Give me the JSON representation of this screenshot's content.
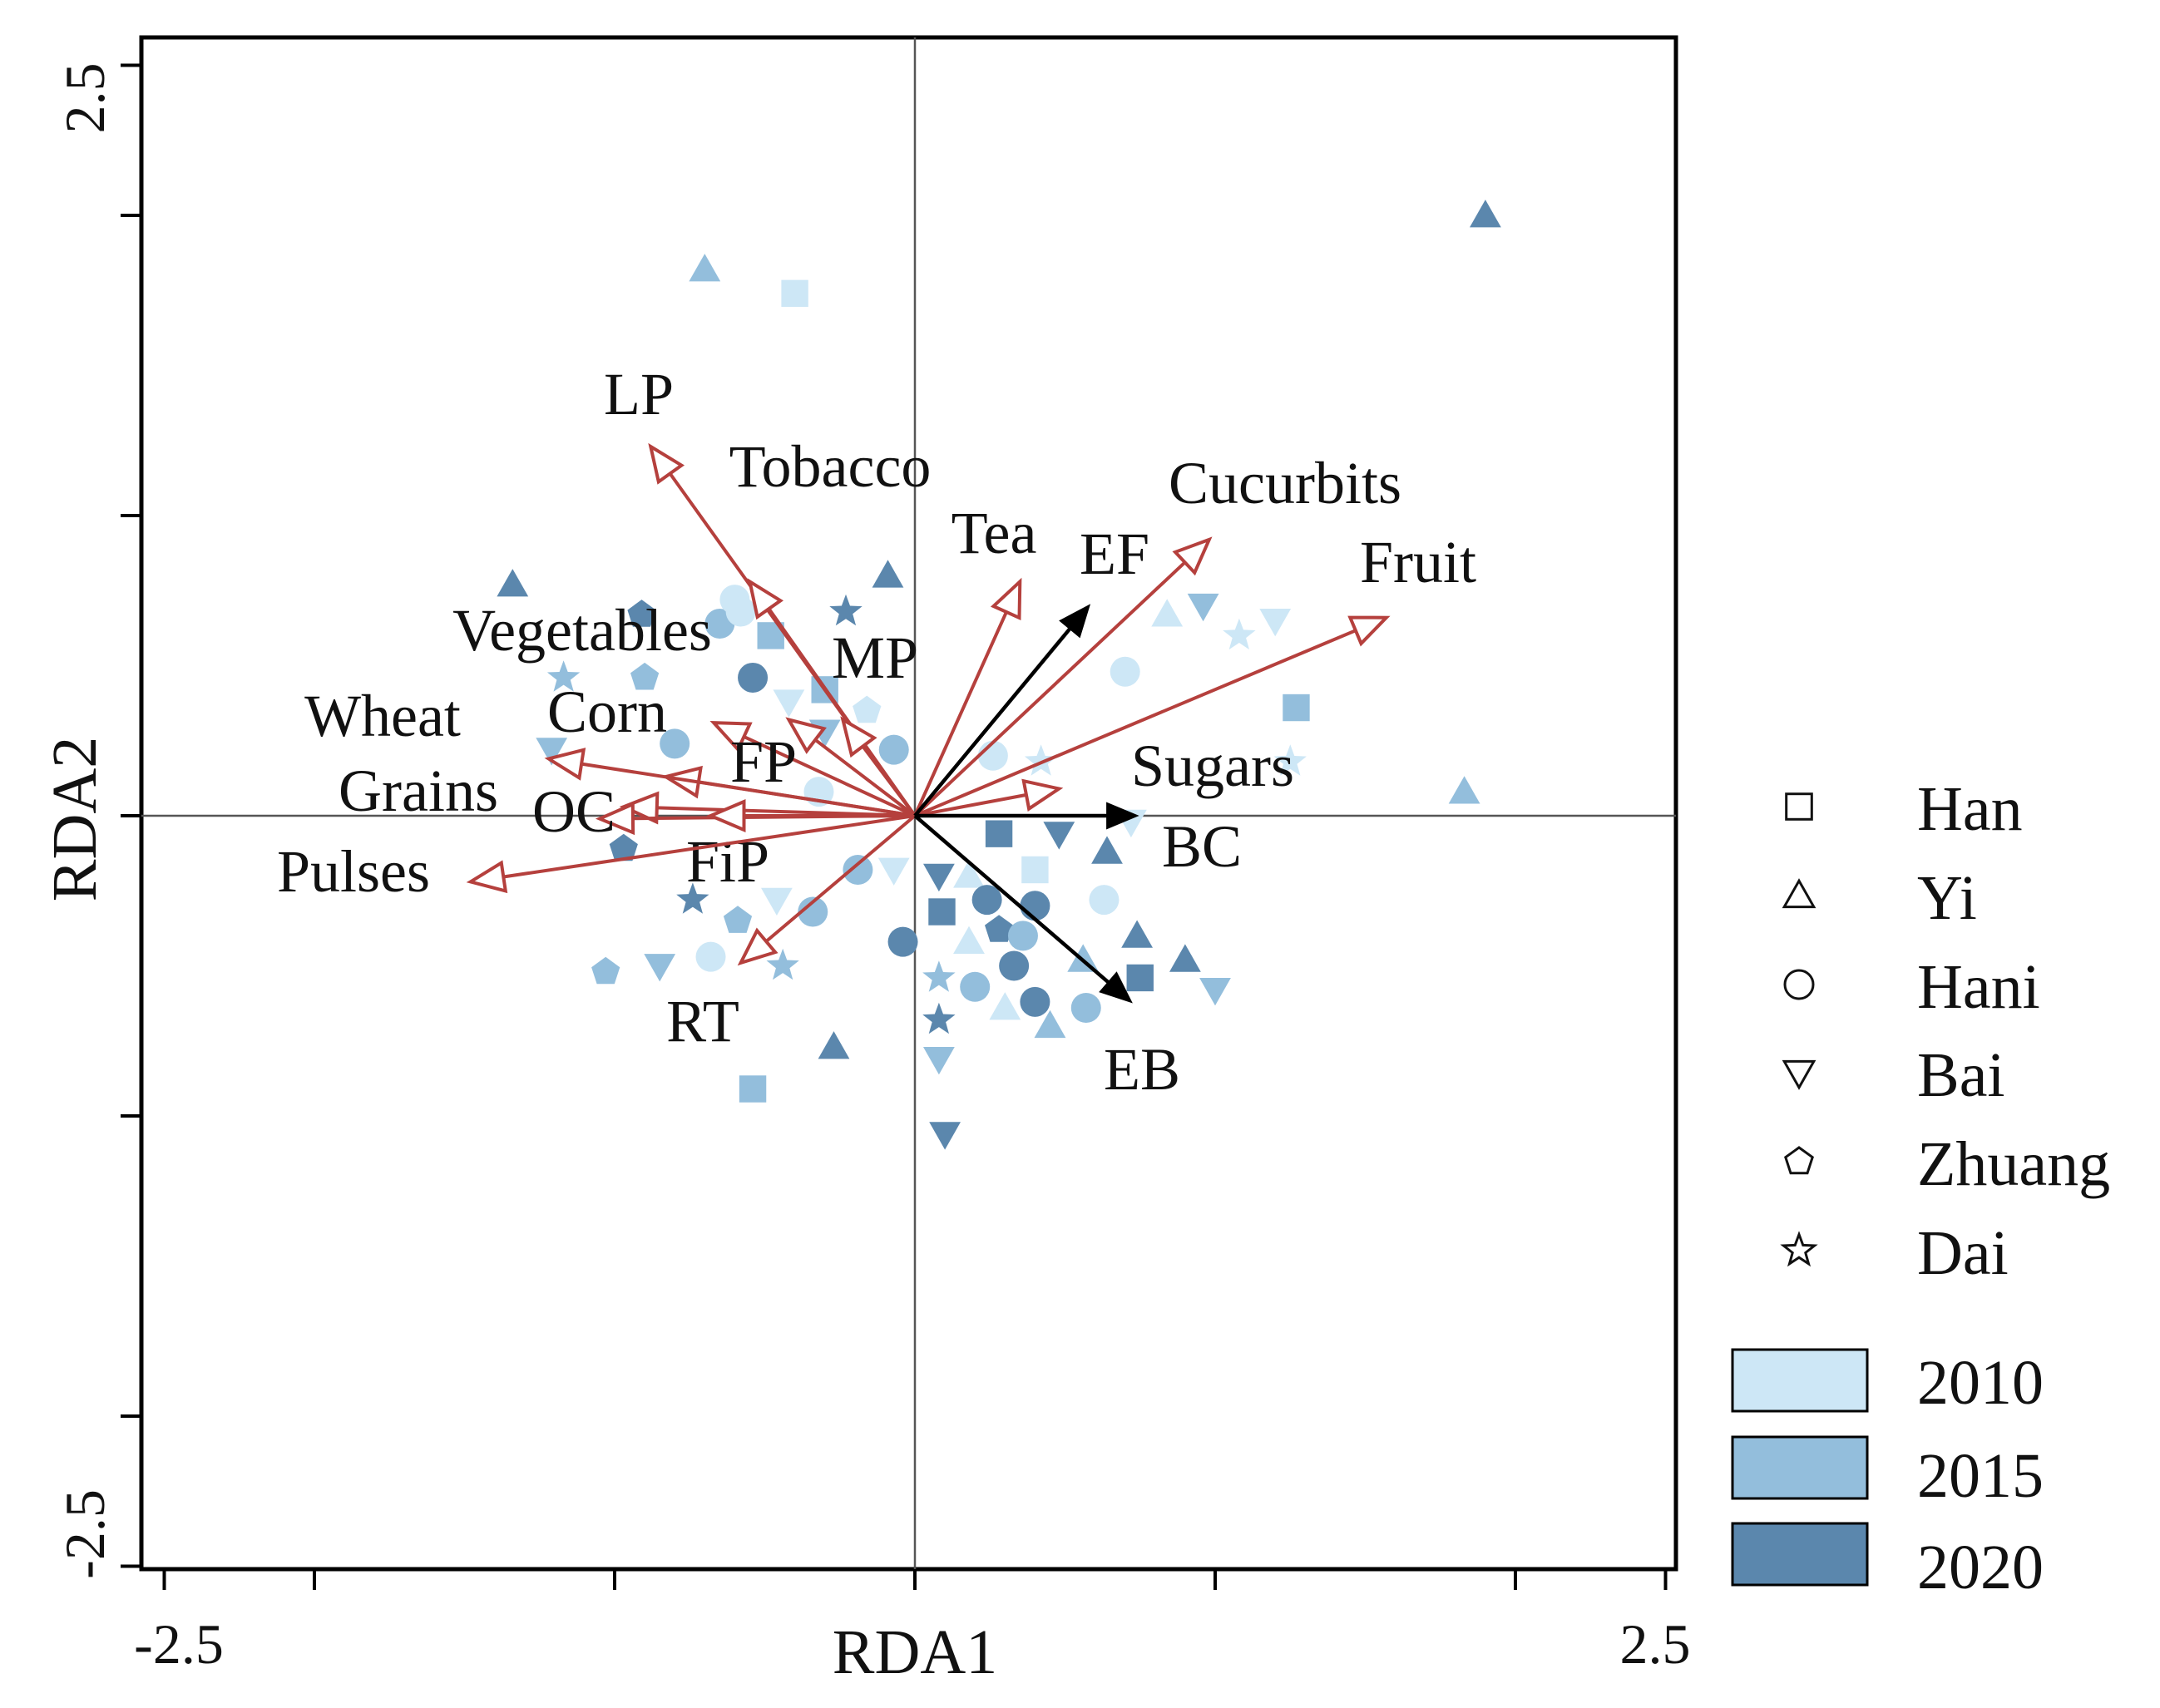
{
  "chart_data": {
    "type": "scatter",
    "subtype": "rda-biplot",
    "xlabel": "RDA1",
    "ylabel": "RDA2",
    "xlim": [
      -2.5,
      2.5
    ],
    "ylim": [
      -2.5,
      2.5
    ],
    "x_tick_labels": [
      {
        "value": -2.5,
        "label": "-2.5"
      },
      {
        "value": 2.5,
        "label": "2.5"
      }
    ],
    "y_tick_labels": [
      {
        "value": 2.5,
        "label": "2.5"
      },
      {
        "value": -2.5,
        "label": "-2.5"
      }
    ],
    "x_ticks": [
      -2.5,
      -2.0,
      -1.0,
      0,
      1.0,
      2.0,
      2.5
    ],
    "y_ticks": [
      2.5,
      2.0,
      1.0,
      0,
      -1.0,
      -2.0,
      -2.5
    ],
    "reference_lines": {
      "x": 0,
      "y": 0
    },
    "colors": {
      "y2010": "#cde7f6",
      "y2015": "#93bedc",
      "y2020": "#5b87ad",
      "response_arrow": "#b5403d",
      "explanatory_arrow": "#000000"
    },
    "response_vectors": [
      {
        "name": "LP",
        "x": -0.88,
        "y": 1.23
      },
      {
        "name": "Tobacco",
        "x": -0.55,
        "y": 0.78
      },
      {
        "name": "Vegetables",
        "x": -0.42,
        "y": 0.32
      },
      {
        "name": "MP",
        "x": -0.24,
        "y": 0.32
      },
      {
        "name": "Corn",
        "x": -0.67,
        "y": 0.31
      },
      {
        "name": "FP",
        "x": -0.83,
        "y": 0.13
      },
      {
        "name": "Wheat",
        "x": -1.22,
        "y": 0.19
      },
      {
        "name": "Grains",
        "x": -0.97,
        "y": 0.03
      },
      {
        "name": "OC",
        "x": -1.05,
        "y": -0.01
      },
      {
        "name": "FiP",
        "x": -0.68,
        "y": 0.0
      },
      {
        "name": "Pulses",
        "x": -1.48,
        "y": -0.22
      },
      {
        "name": "RT",
        "x": -0.58,
        "y": -0.49
      },
      {
        "name": "Tea",
        "x": 0.35,
        "y": 0.78
      },
      {
        "name": "Cucurbits",
        "x": 0.98,
        "y": 0.92
      },
      {
        "name": "Fruit",
        "x": 1.57,
        "y": 0.66
      },
      {
        "name": "Sugars",
        "x": 0.48,
        "y": 0.09
      }
    ],
    "explanatory_vectors": [
      {
        "name": "EF",
        "x": 0.58,
        "y": 0.7
      },
      {
        "name": "BC",
        "x": 0.74,
        "y": 0.0
      },
      {
        "name": "EB",
        "x": 0.72,
        "y": -0.62
      }
    ],
    "groups": [
      "Han",
      "Yi",
      "Hani",
      "Bai",
      "Zhuang",
      "Dai"
    ],
    "years": [
      "2010",
      "2015",
      "2020"
    ],
    "points": [
      {
        "g": "Yi",
        "yr": "2020",
        "x": 1.9,
        "y": 2.0
      },
      {
        "g": "Yi",
        "yr": "2015",
        "x": -0.7,
        "y": 1.82
      },
      {
        "g": "Han",
        "yr": "2010",
        "x": -0.4,
        "y": 1.74
      },
      {
        "g": "Yi",
        "yr": "2020",
        "x": -1.34,
        "y": 0.77
      },
      {
        "g": "Hani",
        "yr": "2015",
        "x": -0.65,
        "y": 0.64
      },
      {
        "g": "Zhuang",
        "yr": "2020",
        "x": -0.91,
        "y": 0.67
      },
      {
        "g": "Han",
        "yr": "2015",
        "x": -0.48,
        "y": 0.6
      },
      {
        "g": "Yi",
        "yr": "2020",
        "x": -0.09,
        "y": 0.8
      },
      {
        "g": "Dai",
        "yr": "2020",
        "x": -0.23,
        "y": 0.68
      },
      {
        "g": "Hani",
        "yr": "2010",
        "x": -0.6,
        "y": 0.72
      },
      {
        "g": "Hani",
        "yr": "2010",
        "x": -0.58,
        "y": 0.68
      },
      {
        "g": "Zhuang",
        "yr": "2015",
        "x": -0.9,
        "y": 0.46
      },
      {
        "g": "Dai",
        "yr": "2015",
        "x": -1.17,
        "y": 0.46
      },
      {
        "g": "Hani",
        "yr": "2020",
        "x": -0.54,
        "y": 0.46
      },
      {
        "g": "Bai",
        "yr": "2010",
        "x": -0.42,
        "y": 0.38
      },
      {
        "g": "Han",
        "yr": "2015",
        "x": -0.3,
        "y": 0.42
      },
      {
        "g": "Zhuang",
        "yr": "2010",
        "x": -0.16,
        "y": 0.35
      },
      {
        "g": "Hani",
        "yr": "2015",
        "x": -0.8,
        "y": 0.24
      },
      {
        "g": "Bai",
        "yr": "2015",
        "x": -0.3,
        "y": 0.28
      },
      {
        "g": "Hani",
        "yr": "2010",
        "x": -0.32,
        "y": 0.08
      },
      {
        "g": "Hani",
        "yr": "2015",
        "x": -0.07,
        "y": 0.22
      },
      {
        "g": "Bai",
        "yr": "2015",
        "x": -1.21,
        "y": 0.22
      },
      {
        "g": "Yi",
        "yr": "2010",
        "x": 0.84,
        "y": 0.67
      },
      {
        "g": "Bai",
        "yr": "2015",
        "x": 0.96,
        "y": 0.7
      },
      {
        "g": "Dai",
        "yr": "2010",
        "x": 1.08,
        "y": 0.6
      },
      {
        "g": "Bai",
        "yr": "2010",
        "x": 1.2,
        "y": 0.65
      },
      {
        "g": "Hani",
        "yr": "2010",
        "x": 0.7,
        "y": 0.48
      },
      {
        "g": "Han",
        "yr": "2015",
        "x": 1.27,
        "y": 0.36
      },
      {
        "g": "Dai",
        "yr": "2010",
        "x": 0.42,
        "y": 0.18
      },
      {
        "g": "Hani",
        "yr": "2010",
        "x": 0.26,
        "y": 0.2
      },
      {
        "g": "Dai",
        "yr": "2010",
        "x": 1.25,
        "y": 0.18
      },
      {
        "g": "Yi",
        "yr": "2015",
        "x": 1.83,
        "y": 0.08
      },
      {
        "g": "Bai",
        "yr": "2010",
        "x": 0.72,
        "y": -0.02
      },
      {
        "g": "Han",
        "yr": "2020",
        "x": 0.28,
        "y": -0.06
      },
      {
        "g": "Bai",
        "yr": "2020",
        "x": 0.48,
        "y": -0.06
      },
      {
        "g": "Yi",
        "yr": "2020",
        "x": 0.64,
        "y": -0.12
      },
      {
        "g": "Han",
        "yr": "2010",
        "x": 0.4,
        "y": -0.18
      },
      {
        "g": "Zhuang",
        "yr": "2020",
        "x": -0.97,
        "y": -0.11
      },
      {
        "g": "Hani",
        "yr": "2015",
        "x": -0.19,
        "y": -0.18
      },
      {
        "g": "Bai",
        "yr": "2010",
        "x": -0.07,
        "y": -0.18
      },
      {
        "g": "Bai",
        "yr": "2020",
        "x": 0.08,
        "y": -0.2
      },
      {
        "g": "Yi",
        "yr": "2010",
        "x": 0.18,
        "y": -0.2
      },
      {
        "g": "Dai",
        "yr": "2020",
        "x": -0.74,
        "y": -0.28
      },
      {
        "g": "Zhuang",
        "yr": "2015",
        "x": -0.59,
        "y": -0.35
      },
      {
        "g": "Bai",
        "yr": "2010",
        "x": -0.46,
        "y": -0.28
      },
      {
        "g": "Hani",
        "yr": "2015",
        "x": -0.34,
        "y": -0.32
      },
      {
        "g": "Han",
        "yr": "2020",
        "x": 0.09,
        "y": -0.32
      },
      {
        "g": "Hani",
        "yr": "2020",
        "x": 0.24,
        "y": -0.28
      },
      {
        "g": "Hani",
        "yr": "2020",
        "x": 0.4,
        "y": -0.3
      },
      {
        "g": "Hani",
        "yr": "2010",
        "x": 0.63,
        "y": -0.28
      },
      {
        "g": "Zhuang",
        "yr": "2020",
        "x": 0.28,
        "y": -0.38
      },
      {
        "g": "Yi",
        "yr": "2010",
        "x": 0.18,
        "y": -0.42
      },
      {
        "g": "Hani",
        "yr": "2015",
        "x": 0.36,
        "y": -0.4
      },
      {
        "g": "Yi",
        "yr": "2020",
        "x": 0.74,
        "y": -0.4
      },
      {
        "g": "Hani",
        "yr": "2020",
        "x": -0.04,
        "y": -0.42
      },
      {
        "g": "Zhuang",
        "yr": "2015",
        "x": -1.03,
        "y": -0.52
      },
      {
        "g": "Bai",
        "yr": "2015",
        "x": -0.85,
        "y": -0.5
      },
      {
        "g": "Hani",
        "yr": "2010",
        "x": -0.68,
        "y": -0.47
      },
      {
        "g": "Dai",
        "yr": "2015",
        "x": -0.44,
        "y": -0.5
      },
      {
        "g": "Hani",
        "yr": "2020",
        "x": 0.33,
        "y": -0.5
      },
      {
        "g": "Yi",
        "yr": "2015",
        "x": 0.56,
        "y": -0.48
      },
      {
        "g": "Yi",
        "yr": "2020",
        "x": 0.9,
        "y": -0.48
      },
      {
        "g": "Han",
        "yr": "2020",
        "x": 0.75,
        "y": -0.54
      },
      {
        "g": "Dai",
        "yr": "2015",
        "x": 0.08,
        "y": -0.54
      },
      {
        "g": "Hani",
        "yr": "2015",
        "x": 0.2,
        "y": -0.57
      },
      {
        "g": "Hani",
        "yr": "2020",
        "x": 0.4,
        "y": -0.62
      },
      {
        "g": "Bai",
        "yr": "2015",
        "x": 1.0,
        "y": -0.58
      },
      {
        "g": "Yi",
        "yr": "2010",
        "x": 0.3,
        "y": -0.64
      },
      {
        "g": "Yi",
        "yr": "2015",
        "x": 0.45,
        "y": -0.7
      },
      {
        "g": "Hani",
        "yr": "2015",
        "x": 0.57,
        "y": -0.64
      },
      {
        "g": "Dai",
        "yr": "2020",
        "x": 0.08,
        "y": -0.68
      },
      {
        "g": "Yi",
        "yr": "2020",
        "x": -0.27,
        "y": -0.77
      },
      {
        "g": "Bai",
        "yr": "2015",
        "x": 0.08,
        "y": -0.81
      },
      {
        "g": "Han",
        "yr": "2015",
        "x": -0.54,
        "y": -0.91
      },
      {
        "g": "Bai",
        "yr": "2020",
        "x": 0.1,
        "y": -1.06
      }
    ],
    "legend": {
      "position": "right",
      "symbols": [
        {
          "label": "Han",
          "shape": "square"
        },
        {
          "label": "Yi",
          "shape": "triangle"
        },
        {
          "label": "Hani",
          "shape": "circle"
        },
        {
          "label": "Bai",
          "shape": "triangle-down"
        },
        {
          "label": "Zhuang",
          "shape": "pentagon"
        },
        {
          "label": "Dai",
          "shape": "star"
        }
      ],
      "colors": [
        {
          "label": "2010"
        },
        {
          "label": "2015"
        },
        {
          "label": "2020"
        }
      ]
    }
  }
}
